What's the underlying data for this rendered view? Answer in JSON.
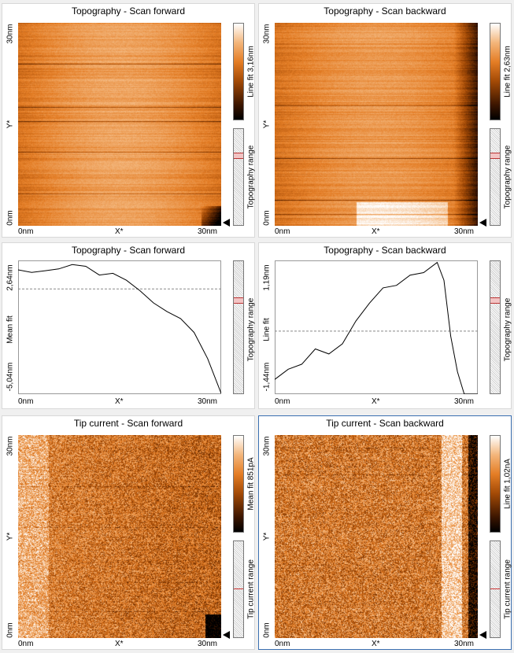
{
  "panels": [
    {
      "title": "Topography - Scan forward",
      "y_top": "30nm",
      "y_mid": "Y*",
      "y_bot": "0nm",
      "x_left": "0nm",
      "x_mid": "X*",
      "x_right": "30nm",
      "cbar_label": "Line fit 3,16nm",
      "range_label": "Topography range"
    },
    {
      "title": "Topography - Scan backward",
      "y_top": "30nm",
      "y_mid": "Y*",
      "y_bot": "0nm",
      "x_left": "0nm",
      "x_mid": "X*",
      "x_right": "30nm",
      "cbar_label": "Line fit 2,63nm",
      "range_label": "Topography range"
    },
    {
      "title": "Topography - Scan forward",
      "y_top": "2,64nm",
      "y_mid": "Mean fit",
      "y_bot": "-5,04nm",
      "x_left": "0nm",
      "x_mid": "X*",
      "x_right": "30nm",
      "range_label": "Topography range"
    },
    {
      "title": "Topography - Scan backward",
      "y_top": "1,19nm",
      "y_mid": "Line fit",
      "y_bot": "-1,44nm",
      "x_left": "0nm",
      "x_mid": "X*",
      "x_right": "30nm",
      "range_label": "Topography range"
    },
    {
      "title": "Tip current - Scan forward",
      "y_top": "30nm",
      "y_mid": "Y*",
      "y_bot": "0nm",
      "x_left": "0nm",
      "x_mid": "X*",
      "x_right": "30nm",
      "cbar_label": "Mean fit 851pA",
      "range_label": "Tip current range"
    },
    {
      "title": "Tip current - Scan backward",
      "y_top": "30nm",
      "y_mid": "Y*",
      "y_bot": "0nm",
      "x_left": "0nm",
      "x_mid": "X*",
      "x_right": "30nm",
      "cbar_label": "Line fit 1,02nA",
      "range_label": "Tip current range"
    }
  ],
  "chart_data": [
    {
      "type": "line",
      "title": "Topography - Scan forward",
      "ylabel": "Mean fit",
      "xlabel": "X*",
      "xlim": [
        0,
        30
      ],
      "ylim": [
        -5.04,
        2.64
      ],
      "x": [
        0,
        2,
        4,
        6,
        8,
        10,
        12,
        14,
        16,
        18,
        20,
        22,
        24,
        26,
        28,
        30
      ],
      "y": [
        2.1,
        1.95,
        2.05,
        2.15,
        2.4,
        2.3,
        1.8,
        1.9,
        1.5,
        0.9,
        0.2,
        -0.3,
        -0.7,
        -1.5,
        -3.0,
        -5.0
      ],
      "reference_line": 1.0
    },
    {
      "type": "line",
      "title": "Topography - Scan backward",
      "ylabel": "Line fit",
      "xlabel": "X*",
      "xlim": [
        0,
        30
      ],
      "ylim": [
        -1.44,
        1.19
      ],
      "x": [
        0,
        2,
        4,
        6,
        8,
        10,
        12,
        14,
        16,
        18,
        20,
        22,
        24,
        25,
        26,
        27,
        28,
        30
      ],
      "y": [
        -1.15,
        -0.95,
        -0.85,
        -0.55,
        -0.65,
        -0.45,
        0.0,
        0.35,
        0.65,
        0.7,
        0.9,
        0.95,
        1.15,
        0.8,
        -0.3,
        -1.0,
        -1.44,
        -1.44
      ],
      "reference_line": -0.2
    }
  ]
}
